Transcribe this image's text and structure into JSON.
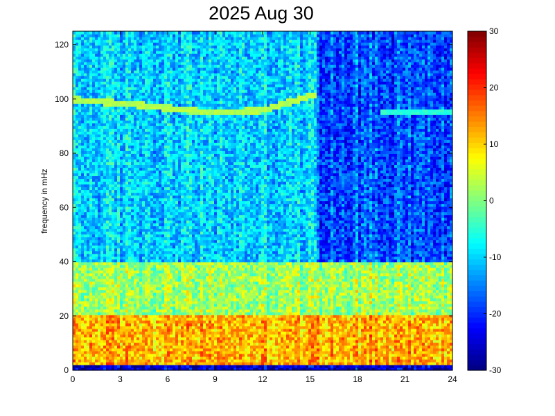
{
  "chart_data": {
    "type": "heatmap",
    "title": "2025 Aug 30",
    "xlabel": "",
    "ylabel": "frequency in mHz",
    "xlim": [
      0,
      24
    ],
    "ylim": [
      0,
      125
    ],
    "x_ticks": [
      "0",
      "3",
      "6",
      "9",
      "12",
      "15",
      "18",
      "21",
      "24"
    ],
    "y_ticks": [
      "0",
      "20",
      "40",
      "60",
      "80",
      "100",
      "120"
    ],
    "colorbar": {
      "colormap": "jet",
      "range": [
        -30,
        30
      ],
      "ticks": [
        "-30",
        "-20",
        "-10",
        "0",
        "10",
        "20",
        "30"
      ]
    },
    "bands": [
      {
        "freq_range": [
          0,
          2
        ],
        "hours": [
          0,
          24
        ],
        "level": -25
      },
      {
        "freq_range": [
          2,
          20
        ],
        "hours": [
          0,
          24
        ],
        "level": 12
      },
      {
        "freq_range": [
          20,
          40
        ],
        "hours": [
          0,
          24
        ],
        "level": 2
      },
      {
        "freq_range": [
          40,
          125
        ],
        "hours": [
          0,
          15.5
        ],
        "level": -10
      },
      {
        "freq_range": [
          40,
          125
        ],
        "hours": [
          15.5,
          24
        ],
        "level": -18
      }
    ],
    "features": [
      {
        "type": "line",
        "points": [
          [
            0,
            100
          ],
          [
            4,
            98
          ],
          [
            9,
            95
          ],
          [
            12,
            96
          ],
          [
            15.5,
            102
          ]
        ],
        "level": 3
      },
      {
        "type": "line",
        "points": [
          [
            19.5,
            95
          ],
          [
            24,
            95
          ]
        ],
        "level": -5
      }
    ]
  }
}
